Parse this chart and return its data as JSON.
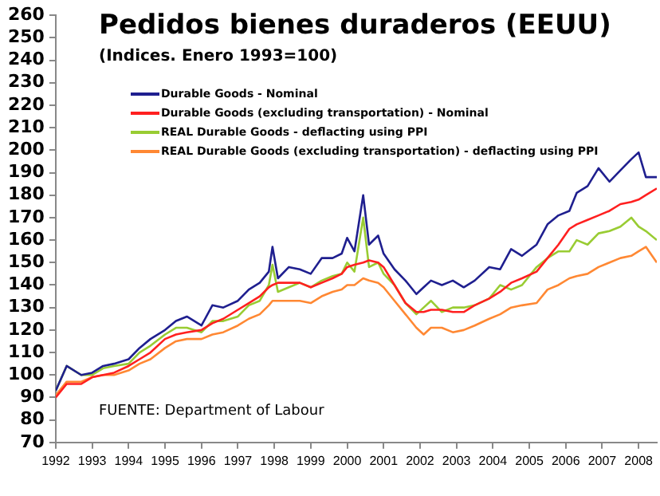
{
  "chart_data": {
    "type": "line",
    "title": "Pedidos bienes duraderos (EEUU)",
    "subtitle": "(Indices. Enero 1993=100)",
    "annotations": [
      "FUENTE: Department of Labour"
    ],
    "x": [
      1992.0,
      1992.3,
      1992.7,
      1993.0,
      1993.3,
      1993.6,
      1994.0,
      1994.3,
      1994.6,
      1995.0,
      1995.3,
      1995.6,
      1996.0,
      1996.3,
      1996.6,
      1997.0,
      1997.3,
      1997.6,
      1997.85,
      1997.95,
      1998.1,
      1998.4,
      1998.7,
      1999.0,
      1999.3,
      1999.6,
      1999.85,
      2000.0,
      2000.2,
      2000.44,
      2000.6,
      2000.85,
      2001.0,
      2001.3,
      2001.6,
      2001.9,
      2002.1,
      2002.3,
      2002.6,
      2002.9,
      2003.2,
      2003.5,
      2003.9,
      2004.2,
      2004.5,
      2004.8,
      2005.2,
      2005.5,
      2005.8,
      2006.1,
      2006.3,
      2006.6,
      2006.9,
      2007.2,
      2007.5,
      2007.8,
      2008.0,
      2008.2,
      2008.5
    ],
    "xlim": [
      1992,
      2008.5
    ],
    "xticks": [
      1992,
      1993,
      1994,
      1995,
      1996,
      1997,
      1998,
      1999,
      2000,
      2001,
      2002,
      2003,
      2004,
      2005,
      2006,
      2007,
      2008
    ],
    "ylim": [
      70,
      260
    ],
    "yticks": [
      70,
      80,
      90,
      100,
      110,
      120,
      130,
      140,
      150,
      160,
      170,
      180,
      190,
      200,
      210,
      220,
      230,
      240,
      250,
      260
    ],
    "grid": false,
    "legend": "top left",
    "marker": "none",
    "line_style": "solid",
    "series": [
      {
        "name": "Durable Goods - Nominal",
        "color": "#1f1f8f",
        "values": [
          93,
          104,
          100,
          101,
          104,
          105,
          107,
          112,
          116,
          120,
          124,
          126,
          122,
          131,
          130,
          133,
          138,
          141,
          146,
          157,
          143,
          148,
          147,
          145,
          152,
          152,
          154,
          161,
          155,
          180,
          158,
          162,
          154,
          147,
          142,
          136,
          139,
          142,
          140,
          142,
          139,
          142,
          148,
          147,
          156,
          153,
          158,
          167,
          171,
          173,
          181,
          184,
          192,
          186,
          191,
          196,
          199,
          188,
          188
        ]
      },
      {
        "name": "Durable Goods (excluding transportation) - Nominal",
        "color": "#ff2020",
        "values": [
          90,
          96,
          96,
          99,
          100,
          101,
          104,
          107,
          110,
          116,
          118,
          119,
          120,
          123,
          125,
          129,
          132,
          135,
          139,
          140,
          141,
          141,
          141,
          139,
          141,
          143,
          145,
          148,
          149,
          150,
          151,
          150,
          148,
          140,
          132,
          128,
          128,
          129,
          129,
          128,
          128,
          131,
          134,
          137,
          141,
          143,
          146,
          152,
          158,
          165,
          167,
          169,
          171,
          173,
          176,
          177,
          178,
          180,
          183
        ]
      },
      {
        "name": "REAL Durable Goods - deflacting using PPI",
        "color": "#99cc33",
        "values": [
          93,
          104,
          100,
          100,
          103,
          104,
          105,
          110,
          113,
          118,
          121,
          121,
          119,
          124,
          124,
          126,
          131,
          133,
          140,
          149,
          137,
          139,
          141,
          139,
          142,
          144,
          145,
          150,
          146,
          170,
          148,
          150,
          145,
          140,
          132,
          127,
          130,
          133,
          128,
          130,
          130,
          131,
          134,
          140,
          138,
          140,
          148,
          152,
          155,
          155,
          160,
          158,
          163,
          164,
          166,
          170,
          166,
          164,
          160
        ]
      },
      {
        "name": "REAL Durable Goods (excluding transportation) - deflacting using PPI",
        "color": "#ff8833",
        "values": [
          91,
          97,
          97,
          99,
          100,
          100,
          102,
          105,
          107,
          112,
          115,
          116,
          116,
          118,
          119,
          122,
          125,
          127,
          131,
          133,
          133,
          133,
          133,
          132,
          135,
          137,
          138,
          140,
          140,
          143,
          142,
          141,
          139,
          133,
          127,
          121,
          118,
          121,
          121,
          119,
          120,
          122,
          125,
          127,
          130,
          131,
          132,
          138,
          140,
          143,
          144,
          145,
          148,
          150,
          152,
          153,
          155,
          157,
          150
        ]
      }
    ]
  }
}
